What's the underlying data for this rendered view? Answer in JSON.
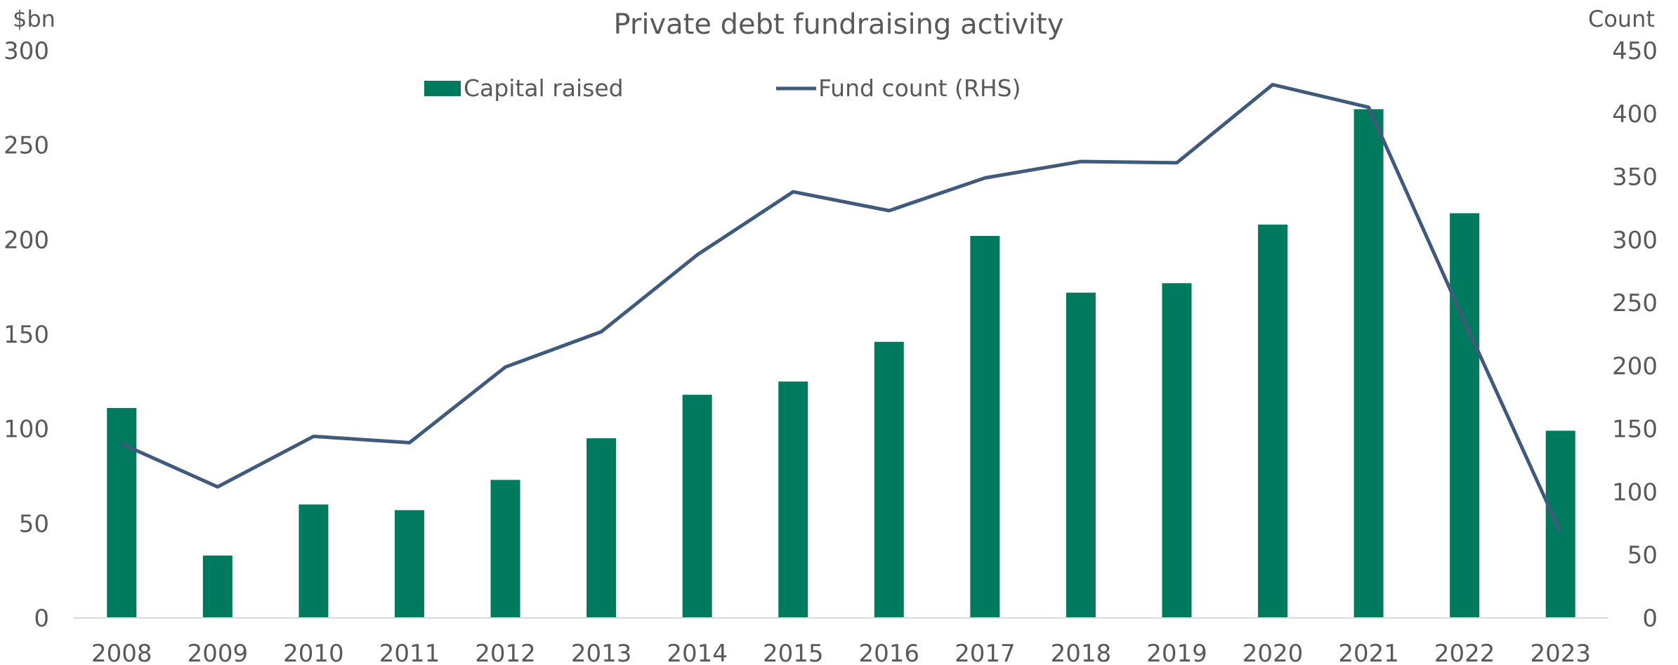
{
  "chart_data": {
    "type": "bar",
    "title": "Private debt fundraising activity",
    "left_axis_unit": "$bn",
    "right_axis_unit": "Count",
    "categories": [
      "2008",
      "2009",
      "2010",
      "2011",
      "2012",
      "2013",
      "2014",
      "2015",
      "2016",
      "2017",
      "2018",
      "2019",
      "2020",
      "2021",
      "2022",
      "2023"
    ],
    "series": [
      {
        "name": "Capital raised",
        "type": "bar",
        "axis": "left",
        "color": "#007A5E",
        "values": [
          111,
          33,
          60,
          57,
          73,
          95,
          118,
          125,
          146,
          202,
          172,
          177,
          208,
          269,
          214,
          99
        ]
      },
      {
        "name": "Fund count (RHS)",
        "type": "line",
        "axis": "right",
        "color": "#3F5A7A",
        "values": [
          138,
          104,
          144,
          139,
          199,
          227,
          288,
          338,
          323,
          349,
          362,
          361,
          423,
          405,
          235,
          68
        ]
      }
    ],
    "ylim_left": [
      0,
      300
    ],
    "yticks_left": [
      "0",
      "50",
      "100",
      "150",
      "200",
      "250",
      "300"
    ],
    "ylim_right": [
      0,
      450
    ],
    "yticks_right": [
      "0",
      "50",
      "100",
      "150",
      "200",
      "250",
      "300",
      "350",
      "400",
      "450"
    ],
    "grid": false,
    "legend_position": "top-center"
  }
}
